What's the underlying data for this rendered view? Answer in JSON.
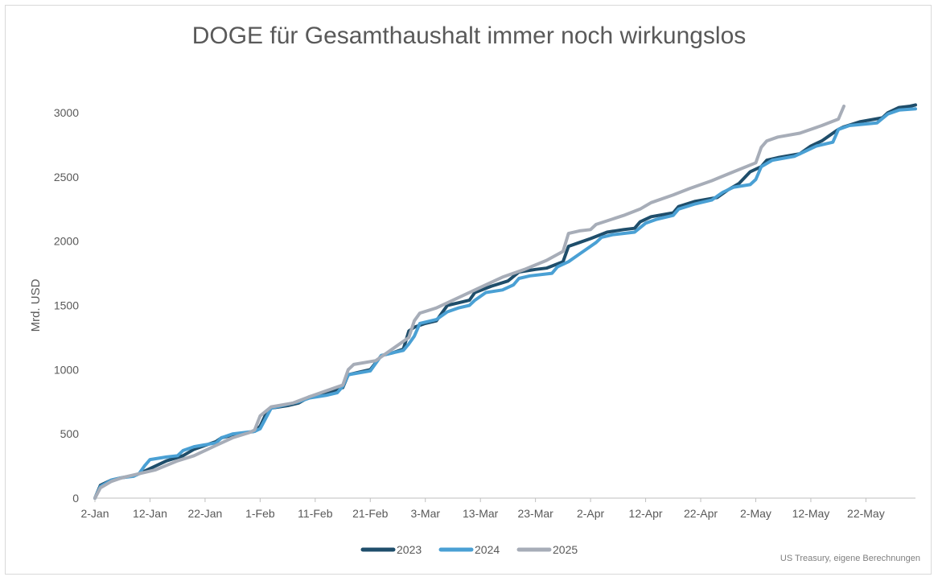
{
  "colors": {
    "2023": "#1f4e6b",
    "2024": "#4aa0d4",
    "2025": "#a7adb8",
    "grid": "#d9d9d9",
    "text": "#595959"
  },
  "source": "US Treasury, eigene Berechnungen",
  "chart_data": {
    "type": "line",
    "title": "DOGE für Gesamthaushalt immer noch wirkungslos",
    "xlabel": "",
    "ylabel": "Mrd. USD",
    "ylim": [
      0,
      3000
    ],
    "yticks": [
      0,
      500,
      1000,
      1500,
      2000,
      2500,
      3000
    ],
    "grid": false,
    "legend": "bottom",
    "xticks": [
      "2-Jan",
      "12-Jan",
      "22-Jan",
      "1-Feb",
      "11-Feb",
      "21-Feb",
      "3-Mar",
      "13-Mar",
      "23-Mar",
      "2-Apr",
      "12-Apr",
      "22-Apr",
      "2-May",
      "12-May",
      "22-May"
    ],
    "xlim": [
      "2-Jan",
      "31-May"
    ],
    "series": [
      {
        "name": "2023",
        "color": "#1f4e6b",
        "points": [
          [
            "2-Jan",
            0
          ],
          [
            "3-Jan",
            100
          ],
          [
            "5-Jan",
            140
          ],
          [
            "7-Jan",
            160
          ],
          [
            "9-Jan",
            175
          ],
          [
            "10-Jan",
            190
          ],
          [
            "12-Jan",
            230
          ],
          [
            "15-Jan",
            290
          ],
          [
            "18-Jan",
            330
          ],
          [
            "20-Jan",
            380
          ],
          [
            "22-Jan",
            410
          ],
          [
            "24-Jan",
            440
          ],
          [
            "25-Jan",
            470
          ],
          [
            "28-Jan",
            500
          ],
          [
            "31-Jan",
            520
          ],
          [
            "1-Feb",
            560
          ],
          [
            "2-Feb",
            650
          ],
          [
            "3-Feb",
            700
          ],
          [
            "6-Feb",
            720
          ],
          [
            "8-Feb",
            740
          ],
          [
            "10-Feb",
            790
          ],
          [
            "13-Feb",
            820
          ],
          [
            "16-Feb",
            860
          ],
          [
            "17-Feb",
            960
          ],
          [
            "19-Feb",
            980
          ],
          [
            "21-Feb",
            1000
          ],
          [
            "23-Feb",
            1110
          ],
          [
            "25-Feb",
            1130
          ],
          [
            "27-Feb",
            1160
          ],
          [
            "28-Feb",
            1300
          ],
          [
            "1-Mar",
            1330
          ],
          [
            "3-Mar",
            1360
          ],
          [
            "5-Mar",
            1380
          ],
          [
            "7-Mar",
            1500
          ],
          [
            "9-Mar",
            1520
          ],
          [
            "11-Mar",
            1540
          ],
          [
            "12-Mar",
            1600
          ],
          [
            "15-Mar",
            1650
          ],
          [
            "18-Mar",
            1690
          ],
          [
            "20-Mar",
            1760
          ],
          [
            "23-Mar",
            1780
          ],
          [
            "25-Mar",
            1790
          ],
          [
            "28-Mar",
            1840
          ],
          [
            "29-Mar",
            1960
          ],
          [
            "31-Mar",
            1990
          ],
          [
            "2-Apr",
            2020
          ],
          [
            "5-Apr",
            2070
          ],
          [
            "8-Apr",
            2090
          ],
          [
            "10-Apr",
            2100
          ],
          [
            "11-Apr",
            2150
          ],
          [
            "13-Apr",
            2190
          ],
          [
            "17-Apr",
            2220
          ],
          [
            "18-Apr",
            2270
          ],
          [
            "21-Apr",
            2310
          ],
          [
            "25-Apr",
            2340
          ],
          [
            "27-Apr",
            2400
          ],
          [
            "29-Apr",
            2450
          ],
          [
            "1-May",
            2540
          ],
          [
            "3-May",
            2580
          ],
          [
            "4-May",
            2630
          ],
          [
            "6-May",
            2650
          ],
          [
            "10-May",
            2680
          ],
          [
            "12-May",
            2740
          ],
          [
            "14-May",
            2780
          ],
          [
            "16-May",
            2840
          ],
          [
            "17-May",
            2870
          ],
          [
            "18-May",
            2890
          ],
          [
            "21-May",
            2930
          ],
          [
            "25-May",
            2960
          ],
          [
            "26-May",
            3000
          ],
          [
            "28-May",
            3040
          ],
          [
            "30-May",
            3050
          ],
          [
            "31-May",
            3060
          ]
        ]
      },
      {
        "name": "2024",
        "color": "#4aa0d4",
        "points": [
          [
            "2-Jan",
            0
          ],
          [
            "3-Jan",
            90
          ],
          [
            "5-Jan",
            140
          ],
          [
            "7-Jan",
            160
          ],
          [
            "9-Jan",
            170
          ],
          [
            "10-Jan",
            190
          ],
          [
            "11-Jan",
            250
          ],
          [
            "12-Jan",
            300
          ],
          [
            "15-Jan",
            320
          ],
          [
            "17-Jan",
            330
          ],
          [
            "18-Jan",
            370
          ],
          [
            "20-Jan",
            400
          ],
          [
            "24-Jan",
            430
          ],
          [
            "25-Jan",
            470
          ],
          [
            "27-Jan",
            500
          ],
          [
            "31-Jan",
            520
          ],
          [
            "1-Feb",
            540
          ],
          [
            "2-Feb",
            620
          ],
          [
            "3-Feb",
            700
          ],
          [
            "6-Feb",
            730
          ],
          [
            "8-Feb",
            750
          ],
          [
            "10-Feb",
            780
          ],
          [
            "13-Feb",
            800
          ],
          [
            "15-Feb",
            820
          ],
          [
            "16-Feb",
            870
          ],
          [
            "17-Feb",
            960
          ],
          [
            "21-Feb",
            990
          ],
          [
            "23-Feb",
            1110
          ],
          [
            "25-Feb",
            1130
          ],
          [
            "27-Feb",
            1150
          ],
          [
            "28-Feb",
            1200
          ],
          [
            "1-Mar",
            1260
          ],
          [
            "2-Mar",
            1360
          ],
          [
            "5-Mar",
            1390
          ],
          [
            "7-Mar",
            1450
          ],
          [
            "9-Mar",
            1480
          ],
          [
            "11-Mar",
            1500
          ],
          [
            "12-Mar",
            1540
          ],
          [
            "14-Mar",
            1600
          ],
          [
            "17-Mar",
            1620
          ],
          [
            "19-Mar",
            1660
          ],
          [
            "20-Mar",
            1710
          ],
          [
            "22-Mar",
            1730
          ],
          [
            "26-Mar",
            1750
          ],
          [
            "27-Mar",
            1800
          ],
          [
            "29-Mar",
            1840
          ],
          [
            "31-Mar",
            1900
          ],
          [
            "2-Apr",
            1960
          ],
          [
            "3-Apr",
            1990
          ],
          [
            "4-Apr",
            2030
          ],
          [
            "6-Apr",
            2050
          ],
          [
            "10-Apr",
            2070
          ],
          [
            "12-Apr",
            2140
          ],
          [
            "14-Apr",
            2170
          ],
          [
            "17-Apr",
            2200
          ],
          [
            "18-Apr",
            2250
          ],
          [
            "21-Apr",
            2290
          ],
          [
            "24-Apr",
            2320
          ],
          [
            "26-Apr",
            2380
          ],
          [
            "28-Apr",
            2420
          ],
          [
            "1-May",
            2440
          ],
          [
            "2-May",
            2480
          ],
          [
            "3-May",
            2580
          ],
          [
            "5-May",
            2630
          ],
          [
            "9-May",
            2660
          ],
          [
            "11-May",
            2700
          ],
          [
            "13-May",
            2740
          ],
          [
            "16-May",
            2770
          ],
          [
            "17-May",
            2870
          ],
          [
            "19-May",
            2900
          ],
          [
            "24-May",
            2920
          ],
          [
            "26-May",
            2990
          ],
          [
            "28-May",
            3020
          ],
          [
            "31-May",
            3030
          ]
        ]
      },
      {
        "name": "2025",
        "color": "#a7adb8",
        "points": [
          [
            "2-Jan",
            0
          ],
          [
            "3-Jan",
            80
          ],
          [
            "5-Jan",
            130
          ],
          [
            "7-Jan",
            160
          ],
          [
            "10-Jan",
            190
          ],
          [
            "13-Jan",
            220
          ],
          [
            "17-Jan",
            290
          ],
          [
            "20-Jan",
            330
          ],
          [
            "24-Jan",
            410
          ],
          [
            "27-Jan",
            470
          ],
          [
            "30-Jan",
            510
          ],
          [
            "31-Jan",
            530
          ],
          [
            "1-Feb",
            640
          ],
          [
            "3-Feb",
            710
          ],
          [
            "7-Feb",
            740
          ],
          [
            "10-Feb",
            790
          ],
          [
            "14-Feb",
            850
          ],
          [
            "16-Feb",
            880
          ],
          [
            "17-Feb",
            1000
          ],
          [
            "18-Feb",
            1040
          ],
          [
            "22-Feb",
            1070
          ],
          [
            "23-Feb",
            1100
          ],
          [
            "25-Feb",
            1160
          ],
          [
            "28-Feb",
            1250
          ],
          [
            "1-Mar",
            1380
          ],
          [
            "2-Mar",
            1440
          ],
          [
            "5-Mar",
            1480
          ],
          [
            "7-Mar",
            1520
          ],
          [
            "10-Mar",
            1580
          ],
          [
            "14-Mar",
            1660
          ],
          [
            "17-Mar",
            1720
          ],
          [
            "21-Mar",
            1780
          ],
          [
            "25-Mar",
            1850
          ],
          [
            "28-Mar",
            1920
          ],
          [
            "29-Mar",
            2060
          ],
          [
            "31-Mar",
            2080
          ],
          [
            "2-Apr",
            2090
          ],
          [
            "3-Apr",
            2130
          ],
          [
            "8-Apr",
            2200
          ],
          [
            "11-Apr",
            2250
          ],
          [
            "13-Apr",
            2300
          ],
          [
            "17-Apr",
            2360
          ],
          [
            "20-Apr",
            2410
          ],
          [
            "24-Apr",
            2470
          ],
          [
            "28-Apr",
            2540
          ],
          [
            "2-May",
            2610
          ],
          [
            "3-May",
            2730
          ],
          [
            "4-May",
            2780
          ],
          [
            "6-May",
            2810
          ],
          [
            "10-May",
            2840
          ],
          [
            "14-May",
            2900
          ],
          [
            "17-May",
            2950
          ],
          [
            "18-May",
            3050
          ]
        ]
      }
    ]
  }
}
